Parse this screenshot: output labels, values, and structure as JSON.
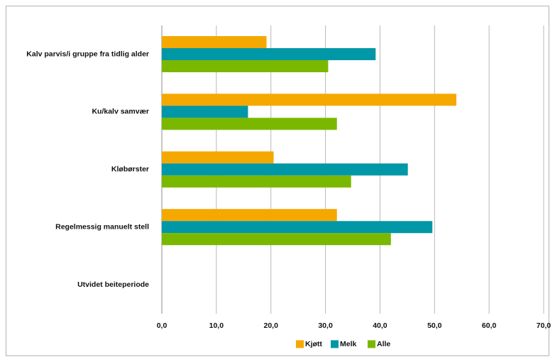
{
  "chart_data": {
    "type": "bar",
    "orientation": "horizontal",
    "title": "",
    "xlabel": "",
    "ylabel": "",
    "categories": [
      "Kalv parvis/i gruppe fra tidlig alder",
      "Ku/kalv samvær",
      "Kløbørster",
      "Regelmessig manuelt stell",
      "Utvidet beiteperiode"
    ],
    "series": [
      {
        "name": "Kjøtt",
        "color": "#f5a800",
        "values": [
          19.2,
          54.0,
          20.5,
          32.1,
          0
        ]
      },
      {
        "name": "Melk",
        "color": "#0097a7",
        "values": [
          39.2,
          15.8,
          45.1,
          49.6,
          0
        ]
      },
      {
        "name": "Alle",
        "color": "#7ab800",
        "values": [
          30.5,
          32.1,
          34.7,
          42.0,
          0
        ]
      }
    ],
    "xlim": [
      0,
      70
    ],
    "x_ticks": [
      "0,0",
      "10,0",
      "20,0",
      "30,0",
      "40,0",
      "50,0",
      "60,0",
      "70,0"
    ],
    "grid": true,
    "legend_position": "bottom"
  }
}
